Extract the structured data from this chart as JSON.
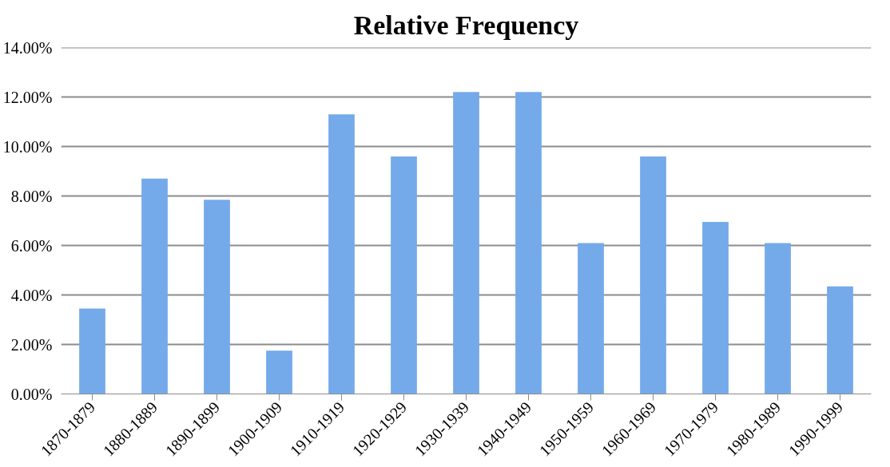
{
  "chart_data": {
    "type": "bar",
    "title": "Relative Frequency",
    "categories": [
      "1870-1879",
      "1880-1889",
      "1890-1899",
      "1900-1909",
      "1910-1919",
      "1920-1929",
      "1930-1939",
      "1940-1949",
      "1950-1959",
      "1960-1969",
      "1970-1979",
      "1980-1989",
      "1990-1999"
    ],
    "values": [
      3.45,
      8.7,
      7.85,
      1.75,
      11.3,
      9.6,
      12.2,
      12.2,
      6.1,
      9.6,
      6.95,
      6.1,
      4.35
    ],
    "color": "#74aaea",
    "ylim": [
      0,
      14
    ],
    "yticks": [
      {
        "value": 0,
        "label": "0.00%"
      },
      {
        "value": 2,
        "label": "2.00%"
      },
      {
        "value": 4,
        "label": "4.00%"
      },
      {
        "value": 6,
        "label": "6.00%"
      },
      {
        "value": 8,
        "label": "8.00%"
      },
      {
        "value": 10,
        "label": "10.00%"
      },
      {
        "value": 12,
        "label": "12.00%"
      },
      {
        "value": 14,
        "label": "14.00%"
      }
    ],
    "grid": "y"
  }
}
